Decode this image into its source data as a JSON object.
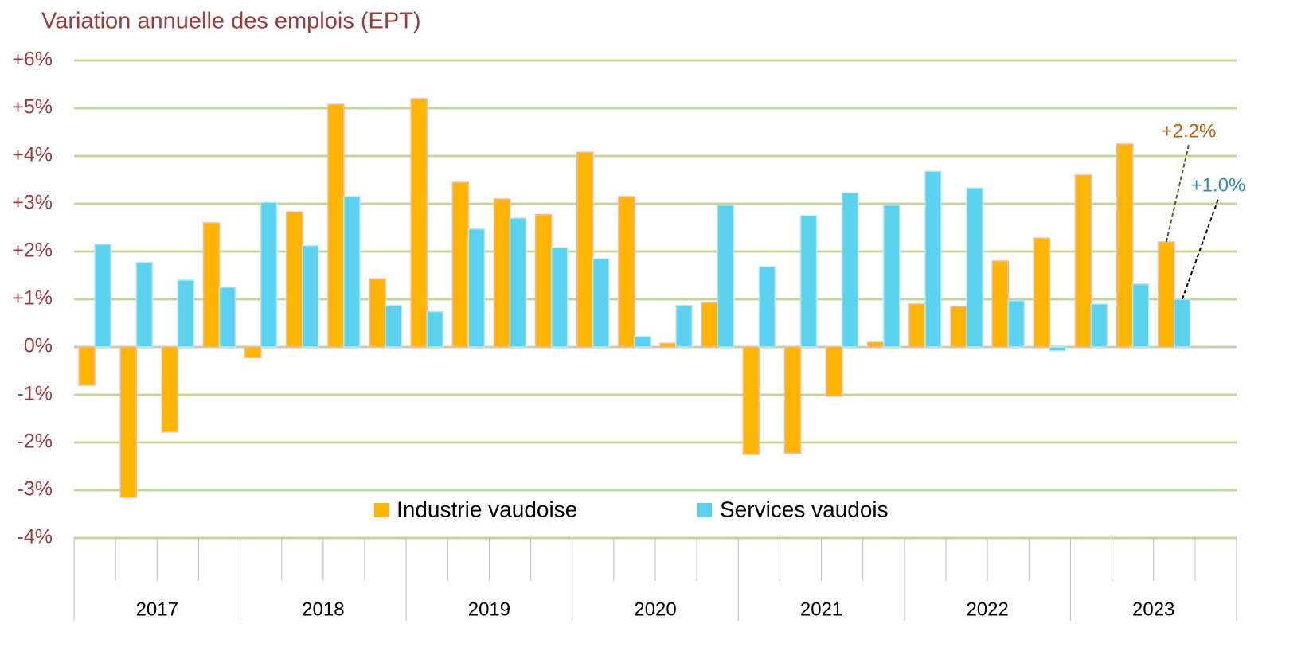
{
  "chart_data": {
    "type": "bar",
    "title": "Variation annuelle des emplois (EPT)",
    "categories": [
      null,
      null,
      null,
      null,
      null,
      null,
      null,
      null,
      null,
      null,
      null,
      null,
      null,
      null,
      null,
      null,
      null,
      null,
      null,
      null,
      null,
      null,
      null,
      null,
      null,
      null,
      null,
      null
    ],
    "year_labels": [
      "2017",
      "2018",
      "2019",
      "2020",
      "2021",
      "2022",
      "2023"
    ],
    "series": [
      {
        "name": "Industrie vaudoise",
        "color": "#FFB400",
        "label_color": "#B8620F",
        "values": [
          -0.8,
          -3.15,
          -1.78,
          2.6,
          -0.22,
          2.83,
          5.08,
          1.43,
          5.2,
          3.45,
          3.1,
          2.77,
          4.08,
          3.15,
          0.08,
          0.93,
          -2.25,
          -2.22,
          -1.03,
          0.1,
          0.9,
          0.85,
          1.8,
          2.28,
          3.6,
          4.25,
          2.2,
          null
        ],
        "value_labels": [
          null,
          null,
          null,
          null,
          null,
          null,
          null,
          null,
          null,
          null,
          null,
          null,
          null,
          null,
          null,
          null,
          null,
          null,
          null,
          null,
          null,
          null,
          null,
          null,
          null,
          null,
          "+2.2%",
          null
        ]
      },
      {
        "name": "Services vaudois",
        "color": "#5AD2F0",
        "label_color": "#2E8FA8",
        "values": [
          2.15,
          1.77,
          1.4,
          1.25,
          3.03,
          2.12,
          3.15,
          0.87,
          0.74,
          2.47,
          2.7,
          2.08,
          1.85,
          0.22,
          0.87,
          2.97,
          1.68,
          2.75,
          3.23,
          2.97,
          3.68,
          3.33,
          0.97,
          -0.08,
          0.9,
          1.32,
          1.0,
          null
        ],
        "value_labels": [
          null,
          null,
          null,
          null,
          null,
          null,
          null,
          null,
          null,
          null,
          null,
          null,
          null,
          null,
          null,
          null,
          null,
          null,
          null,
          null,
          null,
          null,
          null,
          null,
          null,
          null,
          "+1.0%",
          null
        ]
      }
    ],
    "ylim": [
      -4,
      6
    ],
    "yticks": [
      {
        "value": -4,
        "label": "-4%"
      },
      {
        "value": -3,
        "label": "-3%"
      },
      {
        "value": -2,
        "label": "-2%"
      },
      {
        "value": -1,
        "label": "-1%"
      },
      {
        "value": 0,
        "label": "0%"
      },
      {
        "value": 1,
        "label": "+1%"
      },
      {
        "value": 2,
        "label": "+2%"
      },
      {
        "value": 3,
        "label": "+3%"
      },
      {
        "value": 4,
        "label": "+4%"
      },
      {
        "value": 5,
        "label": "+5%"
      },
      {
        "value": 6,
        "label": "+6%"
      }
    ],
    "grid": true
  }
}
